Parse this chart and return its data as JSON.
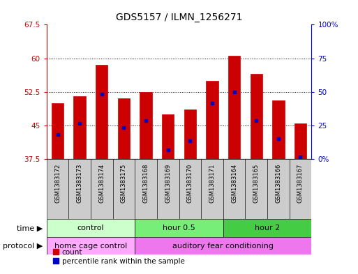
{
  "title": "GDS5157 / ILMN_1256271",
  "samples": [
    "GSM1383172",
    "GSM1383173",
    "GSM1383174",
    "GSM1383175",
    "GSM1383168",
    "GSM1383169",
    "GSM1383170",
    "GSM1383171",
    "GSM1383164",
    "GSM1383165",
    "GSM1383166",
    "GSM1383167"
  ],
  "bar_tops": [
    50.0,
    51.5,
    58.5,
    51.0,
    52.5,
    47.5,
    48.5,
    55.0,
    60.5,
    56.5,
    50.5,
    45.5
  ],
  "bar_bottom": 37.5,
  "blue_marker_values": [
    43.0,
    45.5,
    52.0,
    44.5,
    46.0,
    39.5,
    41.5,
    50.0,
    52.5,
    46.0,
    42.0,
    38.0
  ],
  "ylim_left": [
    37.5,
    67.5
  ],
  "yticks_left": [
    37.5,
    45.0,
    52.5,
    60.0,
    67.5
  ],
  "ytick_labels_left": [
    "37.5",
    "45",
    "52.5",
    "60",
    "67.5"
  ],
  "ylim_right": [
    0,
    100
  ],
  "yticks_right": [
    0,
    25,
    50,
    75,
    100
  ],
  "ytick_labels_right": [
    "0%",
    "25",
    "50",
    "75",
    "100%"
  ],
  "bar_color": "#cc0000",
  "blue_color": "#0000cc",
  "time_groups": [
    {
      "label": "control",
      "start": 0,
      "end": 4,
      "color": "#ccffcc"
    },
    {
      "label": "hour 0.5",
      "start": 4,
      "end": 8,
      "color": "#77ee77"
    },
    {
      "label": "hour 2",
      "start": 8,
      "end": 12,
      "color": "#44cc44"
    }
  ],
  "protocol_groups": [
    {
      "label": "home cage control",
      "start": 0,
      "end": 4,
      "color": "#ffaaff"
    },
    {
      "label": "auditory fear conditioning",
      "start": 4,
      "end": 12,
      "color": "#ee77ee"
    }
  ],
  "time_label": "time",
  "protocol_label": "protocol",
  "legend_count": "count",
  "legend_percentile": "percentile rank within the sample",
  "title_fontsize": 10,
  "tick_fontsize": 7.5,
  "sample_fontsize": 6,
  "group_label_fontsize": 8,
  "bg_color": "#ffffff",
  "sample_cell_color": "#cccccc"
}
